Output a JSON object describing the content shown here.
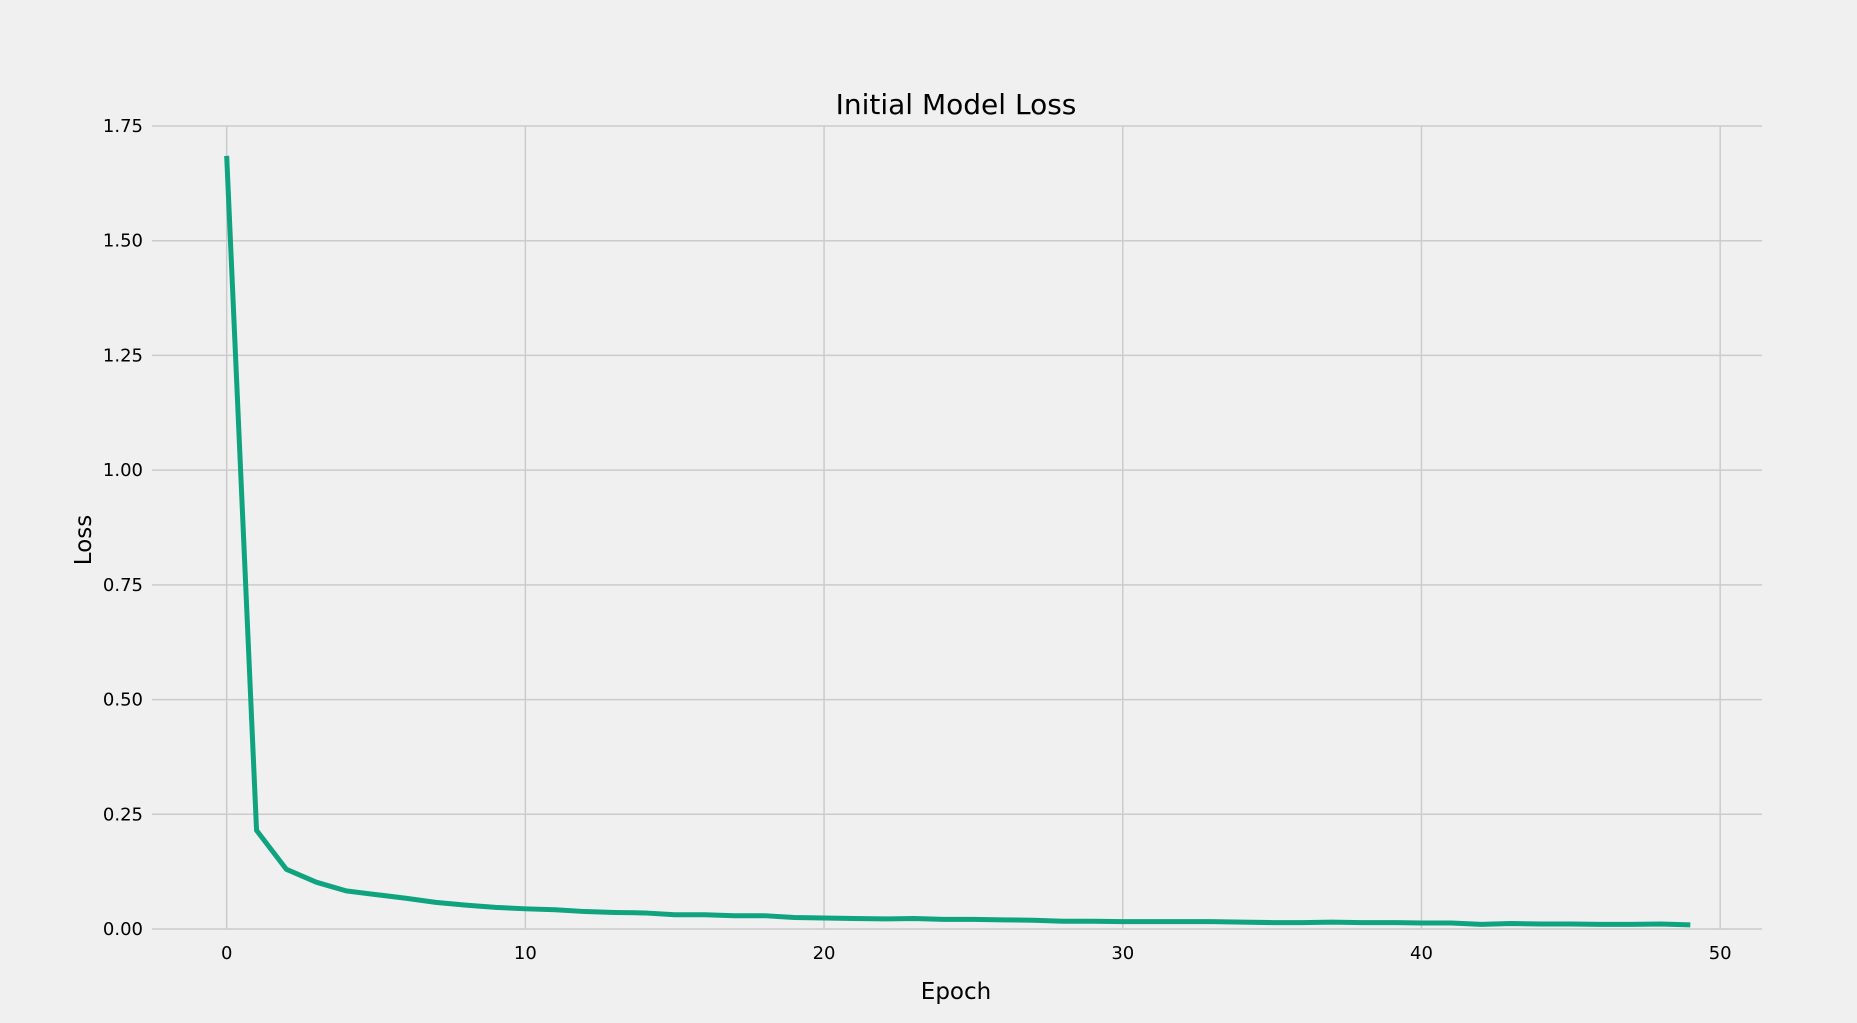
{
  "chart_data": {
    "type": "line",
    "title": "Initial Model Loss",
    "xlabel": "Epoch",
    "ylabel": "Loss",
    "xlim": [
      -2.5,
      51.4
    ],
    "ylim": [
      0.0,
      1.75
    ],
    "xticks": [
      0,
      10,
      20,
      30,
      40,
      50
    ],
    "xtick_labels": [
      "0",
      "10",
      "20",
      "30",
      "40",
      "50"
    ],
    "yticks": [
      0.0,
      0.25,
      0.5,
      0.75,
      1.0,
      1.25,
      1.5,
      1.75
    ],
    "ytick_labels": [
      "0.00",
      "0.25",
      "0.50",
      "0.75",
      "1.00",
      "1.25",
      "1.50",
      "1.75"
    ],
    "grid": true,
    "legend": false,
    "colors": {
      "background": "#f0f0f0",
      "grid": "#cbcbcb",
      "line": "#10a37f"
    },
    "series": [
      {
        "x": [
          0,
          1,
          2,
          3,
          4,
          5,
          6,
          7,
          8,
          9,
          10,
          11,
          12,
          13,
          14,
          15,
          16,
          17,
          18,
          19,
          20,
          21,
          22,
          23,
          24,
          25,
          26,
          27,
          28,
          29,
          30,
          31,
          32,
          33,
          34,
          35,
          36,
          37,
          38,
          39,
          40,
          41,
          42,
          43,
          44,
          45,
          46,
          47,
          48,
          49
        ],
        "values": [
          1.685,
          0.215,
          0.13,
          0.102,
          0.083,
          0.075,
          0.067,
          0.058,
          0.052,
          0.047,
          0.044,
          0.042,
          0.038,
          0.036,
          0.035,
          0.031,
          0.031,
          0.029,
          0.029,
          0.025,
          0.024,
          0.023,
          0.022,
          0.023,
          0.021,
          0.021,
          0.02,
          0.019,
          0.017,
          0.017,
          0.016,
          0.016,
          0.016,
          0.016,
          0.015,
          0.014,
          0.014,
          0.015,
          0.014,
          0.014,
          0.013,
          0.013,
          0.01,
          0.012,
          0.011,
          0.011,
          0.01,
          0.01,
          0.011,
          0.009
        ]
      }
    ]
  }
}
